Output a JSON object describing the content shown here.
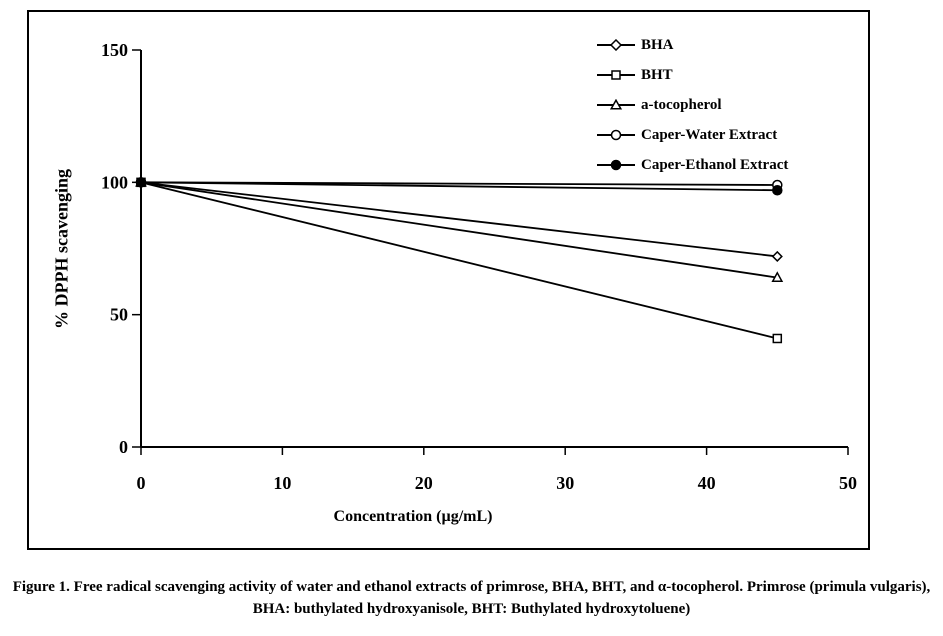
{
  "figure": {
    "caption": "Figure 1. Free radical scavenging activity of water and ethanol extracts of primrose, BHA, BHT, and α-tocopherol. Primrose (primula vulgaris), BHA: buthylated hydroxyanisole, BHT: Buthylated hydroxytoluene)"
  },
  "chart_data": {
    "type": "line",
    "title": "",
    "xlabel": "Concentration (µg/mL)",
    "ylabel": "% DPPH scavenging",
    "xlim": [
      0,
      50
    ],
    "ylim": [
      0,
      150
    ],
    "x_ticks": [
      0,
      10,
      20,
      30,
      40,
      50
    ],
    "y_ticks": [
      0,
      50,
      100,
      150
    ],
    "grid": false,
    "legend_position": "inside-top-right",
    "line_color": "#000000",
    "background_color": "#ffffff",
    "x": [
      0,
      45
    ],
    "series": [
      {
        "name": "BHA",
        "marker": "diamond-open",
        "values": [
          100,
          72
        ]
      },
      {
        "name": "BHT",
        "marker": "square-open",
        "values": [
          100,
          41
        ]
      },
      {
        "name": "a-tocopherol",
        "marker": "triangle-open",
        "values": [
          100,
          64
        ]
      },
      {
        "name": "Caper-Water Extract",
        "marker": "circle-open",
        "values": [
          100,
          99
        ]
      },
      {
        "name": "Caper-Ethanol Extract",
        "marker": "circle-filled",
        "values": [
          100,
          97
        ]
      }
    ]
  }
}
